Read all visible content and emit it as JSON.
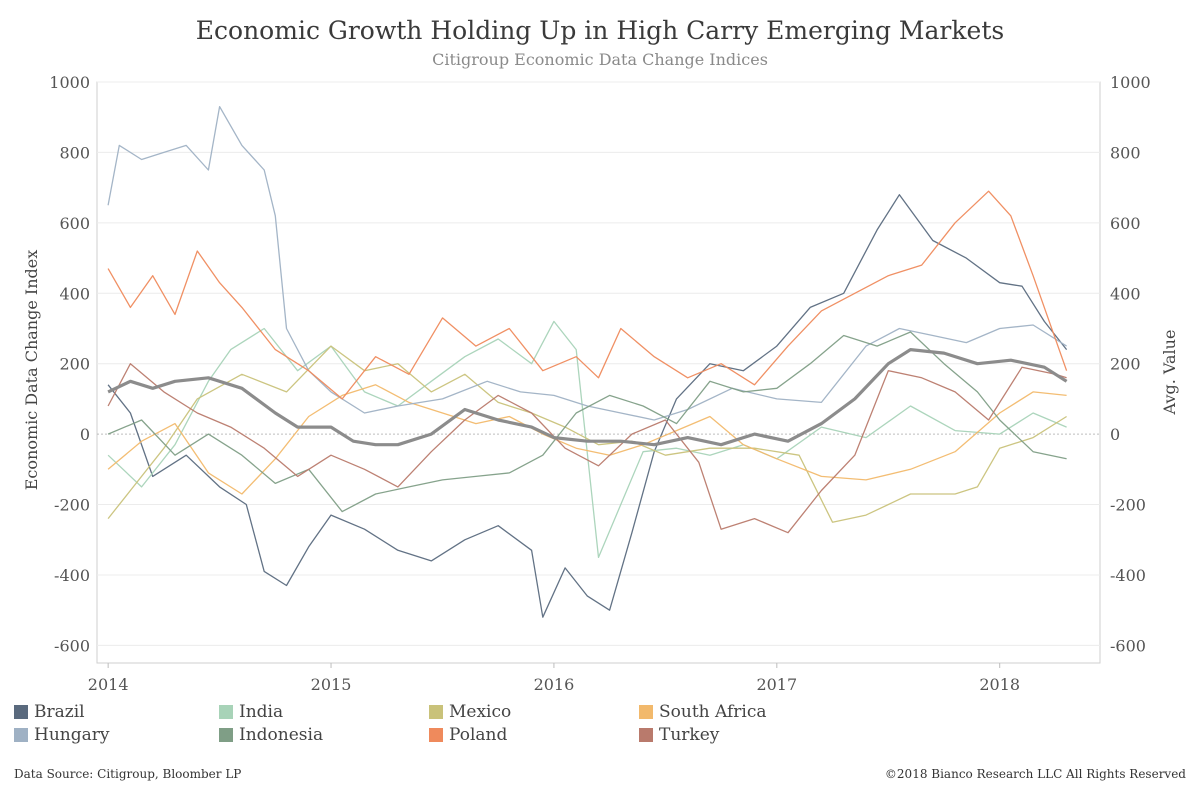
{
  "header": {
    "title": "Economic Growth Holding Up in High Carry Emerging Markets",
    "subtitle": "Citigroup Economic Data Change Indices"
  },
  "footer": {
    "source": "Data Source: Citigroup, Bloomber LP",
    "copyright": "©2018 Bianco Research LLC  All Rights Reserved"
  },
  "chart_data": {
    "type": "line",
    "ylabel": "Economic Data Change Index",
    "y2label": "Avg. Value",
    "ylim": [
      -650,
      1000
    ],
    "xlim": [
      2013.95,
      2018.45
    ],
    "yticks": [
      1000,
      800,
      600,
      400,
      200,
      0,
      -200,
      -400,
      -600
    ],
    "xticks": [
      2014,
      2015,
      2016,
      2017,
      2018
    ],
    "grid": true,
    "legend_position": "bottom",
    "series": [
      {
        "name": "Brazil",
        "color": "#5a6a7e",
        "x": [
          2014.0,
          2014.1,
          2014.2,
          2014.35,
          2014.5,
          2014.62,
          2014.7,
          2014.8,
          2014.9,
          2015.0,
          2015.15,
          2015.3,
          2015.45,
          2015.6,
          2015.75,
          2015.9,
          2015.95,
          2016.05,
          2016.15,
          2016.25,
          2016.35,
          2016.45,
          2016.55,
          2016.7,
          2016.85,
          2017.0,
          2017.15,
          2017.3,
          2017.45,
          2017.55,
          2017.7,
          2017.85,
          2018.0,
          2018.1,
          2018.2,
          2018.3
        ],
        "values": [
          140,
          60,
          -120,
          -60,
          -150,
          -200,
          -390,
          -430,
          -320,
          -230,
          -270,
          -330,
          -360,
          -300,
          -260,
          -330,
          -520,
          -380,
          -460,
          -500,
          -280,
          -50,
          100,
          200,
          180,
          250,
          360,
          400,
          580,
          680,
          550,
          500,
          430,
          420,
          320,
          240
        ]
      },
      {
        "name": "India",
        "color": "#a8d3b8",
        "x": [
          2014.0,
          2014.15,
          2014.3,
          2014.45,
          2014.55,
          2014.7,
          2014.85,
          2015.0,
          2015.15,
          2015.3,
          2015.45,
          2015.6,
          2015.75,
          2015.9,
          2016.0,
          2016.1,
          2016.2,
          2016.3,
          2016.4,
          2016.55,
          2016.7,
          2016.85,
          2017.0,
          2017.2,
          2017.4,
          2017.6,
          2017.8,
          2018.0,
          2018.15,
          2018.3
        ],
        "values": [
          -60,
          -150,
          -30,
          150,
          240,
          300,
          180,
          250,
          120,
          80,
          150,
          220,
          270,
          200,
          320,
          240,
          -350,
          -200,
          -50,
          -40,
          -60,
          -30,
          -70,
          20,
          -10,
          80,
          10,
          0,
          60,
          20
        ]
      },
      {
        "name": "Mexico",
        "color": "#c9c27a",
        "x": [
          2014.0,
          2014.1,
          2014.25,
          2014.4,
          2014.6,
          2014.8,
          2015.0,
          2015.15,
          2015.3,
          2015.45,
          2015.6,
          2015.75,
          2015.9,
          2016.05,
          2016.2,
          2016.35,
          2016.5,
          2016.7,
          2016.9,
          2017.1,
          2017.25,
          2017.4,
          2017.6,
          2017.8,
          2017.9,
          2018.0,
          2018.15,
          2018.3
        ],
        "values": [
          -240,
          -160,
          -40,
          100,
          170,
          120,
          250,
          180,
          200,
          120,
          170,
          90,
          60,
          20,
          -30,
          -20,
          -60,
          -40,
          -40,
          -60,
          -250,
          -230,
          -170,
          -170,
          -150,
          -40,
          -10,
          50
        ]
      },
      {
        "name": "South Africa",
        "color": "#f2b96c",
        "x": [
          2014.0,
          2014.15,
          2014.3,
          2014.45,
          2014.6,
          2014.75,
          2014.9,
          2015.05,
          2015.2,
          2015.35,
          2015.5,
          2015.65,
          2015.8,
          2015.95,
          2016.1,
          2016.25,
          2016.4,
          2016.55,
          2016.7,
          2016.85,
          2017.0,
          2017.2,
          2017.4,
          2017.6,
          2017.8,
          2018.0,
          2018.15,
          2018.3
        ],
        "values": [
          -100,
          -20,
          30,
          -110,
          -170,
          -70,
          50,
          110,
          140,
          90,
          60,
          30,
          50,
          0,
          -40,
          -60,
          -30,
          10,
          50,
          -30,
          -70,
          -120,
          -130,
          -100,
          -50,
          60,
          120,
          110
        ]
      },
      {
        "name": "Hungary",
        "color": "#9fb1c4",
        "x": [
          2014.0,
          2014.05,
          2014.15,
          2014.25,
          2014.35,
          2014.45,
          2014.5,
          2014.6,
          2014.7,
          2014.75,
          2014.8,
          2014.9,
          2015.0,
          2015.15,
          2015.3,
          2015.5,
          2015.7,
          2015.85,
          2016.0,
          2016.15,
          2016.3,
          2016.45,
          2016.6,
          2016.8,
          2017.0,
          2017.2,
          2017.4,
          2017.55,
          2017.7,
          2017.85,
          2018.0,
          2018.15,
          2018.3
        ],
        "values": [
          650,
          820,
          780,
          800,
          820,
          750,
          930,
          820,
          750,
          620,
          300,
          180,
          120,
          60,
          80,
          100,
          150,
          120,
          110,
          80,
          60,
          40,
          70,
          130,
          100,
          90,
          250,
          300,
          280,
          260,
          300,
          310,
          250
        ]
      },
      {
        "name": "Indonesia",
        "color": "#7f9e86",
        "x": [
          2014.0,
          2014.15,
          2014.3,
          2014.45,
          2014.6,
          2014.75,
          2014.9,
          2015.05,
          2015.2,
          2015.35,
          2015.5,
          2015.65,
          2015.8,
          2015.95,
          2016.1,
          2016.25,
          2016.4,
          2016.55,
          2016.7,
          2016.85,
          2017.0,
          2017.15,
          2017.3,
          2017.45,
          2017.6,
          2017.75,
          2017.9,
          2018.0,
          2018.15,
          2018.3
        ],
        "values": [
          0,
          40,
          -60,
          0,
          -60,
          -140,
          -100,
          -220,
          -170,
          -150,
          -130,
          -120,
          -110,
          -60,
          60,
          110,
          80,
          30,
          150,
          120,
          130,
          200,
          280,
          250,
          290,
          200,
          120,
          40,
          -50,
          -70
        ]
      },
      {
        "name": "Poland",
        "color": "#ef8a5c",
        "x": [
          2014.0,
          2014.1,
          2014.2,
          2014.3,
          2014.4,
          2014.5,
          2014.6,
          2014.75,
          2014.9,
          2015.05,
          2015.2,
          2015.35,
          2015.5,
          2015.65,
          2015.8,
          2015.95,
          2016.1,
          2016.2,
          2016.3,
          2016.45,
          2016.6,
          2016.75,
          2016.9,
          2017.05,
          2017.2,
          2017.35,
          2017.5,
          2017.65,
          2017.8,
          2017.95,
          2018.05,
          2018.15,
          2018.3
        ],
        "values": [
          470,
          360,
          450,
          340,
          520,
          430,
          360,
          240,
          180,
          100,
          220,
          170,
          330,
          250,
          300,
          180,
          220,
          160,
          300,
          220,
          160,
          200,
          140,
          250,
          350,
          400,
          450,
          480,
          600,
          690,
          620,
          450,
          180
        ]
      },
      {
        "name": "Turkey",
        "color": "#b97a6c",
        "x": [
          2014.0,
          2014.1,
          2014.25,
          2014.4,
          2014.55,
          2014.7,
          2014.85,
          2015.0,
          2015.15,
          2015.3,
          2015.45,
          2015.6,
          2015.75,
          2015.9,
          2016.05,
          2016.2,
          2016.35,
          2016.5,
          2016.65,
          2016.75,
          2016.9,
          2017.05,
          2017.2,
          2017.35,
          2017.5,
          2017.65,
          2017.8,
          2017.95,
          2018.1,
          2018.25,
          2018.3
        ],
        "values": [
          80,
          200,
          120,
          60,
          20,
          -40,
          -120,
          -60,
          -100,
          -150,
          -50,
          40,
          110,
          60,
          -40,
          -90,
          0,
          40,
          -80,
          -270,
          -240,
          -280,
          -160,
          -60,
          180,
          160,
          120,
          40,
          190,
          170,
          160
        ]
      },
      {
        "name": "Avg. Value",
        "color": "#8c8c8c",
        "x": [
          2014.0,
          2014.1,
          2014.2,
          2014.3,
          2014.45,
          2014.6,
          2014.75,
          2014.85,
          2015.0,
          2015.1,
          2015.2,
          2015.3,
          2015.45,
          2015.6,
          2015.75,
          2015.9,
          2016.0,
          2016.15,
          2016.3,
          2016.45,
          2016.6,
          2016.75,
          2016.9,
          2017.05,
          2017.2,
          2017.35,
          2017.5,
          2017.6,
          2017.75,
          2017.9,
          2018.05,
          2018.2,
          2018.3
        ],
        "values": [
          120,
          150,
          130,
          150,
          160,
          130,
          60,
          20,
          20,
          -20,
          -30,
          -30,
          0,
          70,
          40,
          20,
          -10,
          -20,
          -20,
          -30,
          -10,
          -30,
          0,
          -20,
          30,
          100,
          200,
          240,
          230,
          200,
          210,
          190,
          150
        ]
      }
    ]
  }
}
